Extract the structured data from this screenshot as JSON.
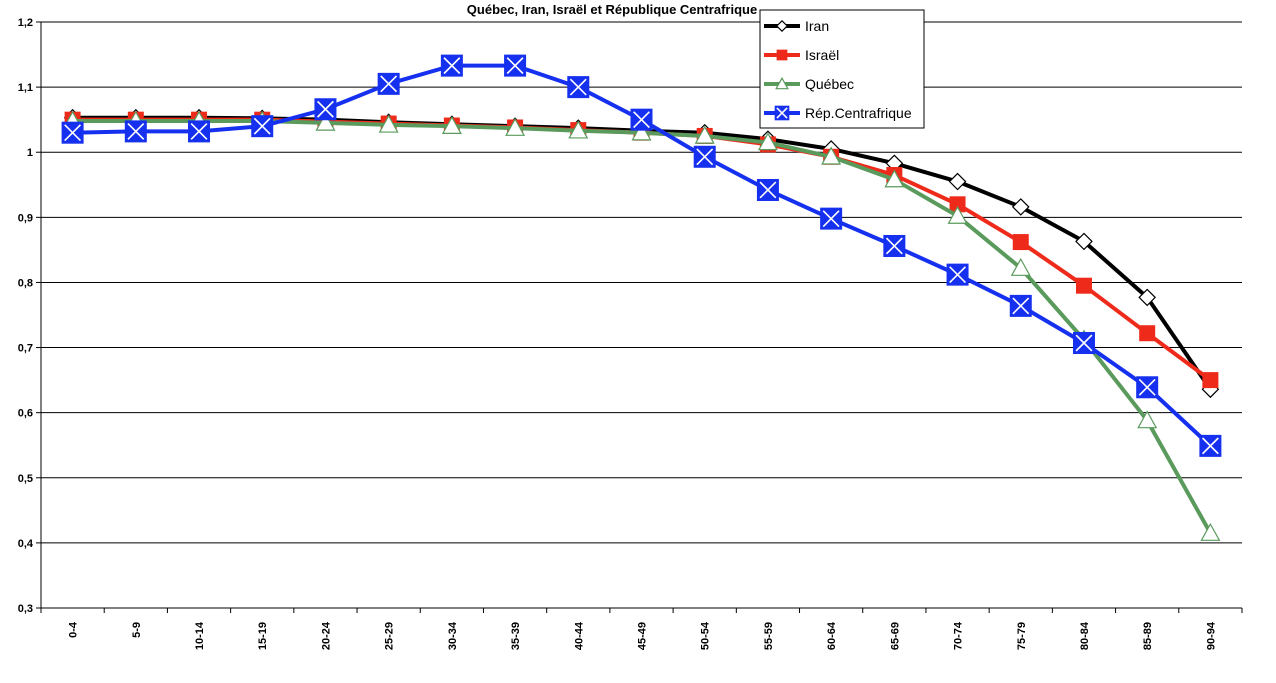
{
  "chart_data": {
    "type": "line",
    "title": "Québec, Iran, Israël et République Centrafrique",
    "xlabel": "",
    "ylabel": "",
    "ylim": [
      0.3,
      1.2
    ],
    "ytick_step": 0.1,
    "ytick_labels": [
      "0,3",
      "0,4",
      "0,5",
      "0,6",
      "0,7",
      "0,8",
      "0,9",
      "1",
      "1,1",
      "1,2"
    ],
    "grid": true,
    "legend_position": "top-right",
    "categories": [
      "0-4",
      "5-9",
      "10-14",
      "15-19",
      "20-24",
      "25-29",
      "30-34",
      "35-39",
      "40-44",
      "45-49",
      "50-54",
      "55-59",
      "60-64",
      "65-69",
      "70-74",
      "75-79",
      "80-84",
      "85-89",
      "90-94"
    ],
    "series": [
      {
        "name": "Iran",
        "color": "#000000",
        "marker": "diamond",
        "values": [
          1.053,
          1.053,
          1.053,
          1.052,
          1.05,
          1.046,
          1.043,
          1.04,
          1.037,
          1.033,
          1.03,
          1.02,
          1.005,
          0.983,
          0.955,
          0.916,
          0.863,
          0.777,
          0.636
        ]
      },
      {
        "name": "Israël",
        "color": "#ee2b1b",
        "marker": "square",
        "values": [
          1.05,
          1.05,
          1.05,
          1.05,
          1.047,
          1.044,
          1.041,
          1.038,
          1.034,
          1.03,
          1.025,
          1.012,
          0.993,
          0.965,
          0.92,
          0.862,
          0.795,
          0.722,
          0.65
        ]
      },
      {
        "name": "Québec",
        "color": "#5a9a5c",
        "marker": "triangle",
        "values": [
          1.048,
          1.048,
          1.048,
          1.048,
          1.045,
          1.042,
          1.04,
          1.037,
          1.033,
          1.03,
          1.025,
          1.015,
          0.993,
          0.958,
          0.902,
          0.822,
          0.712,
          0.588,
          0.415
        ]
      },
      {
        "name": "Rép.Centrafrique",
        "color": "#1630f0",
        "marker": "x-square",
        "values": [
          1.03,
          1.032,
          1.032,
          1.04,
          1.066,
          1.105,
          1.133,
          1.133,
          1.1,
          1.05,
          0.993,
          0.942,
          0.898,
          0.856,
          0.812,
          0.764,
          0.707,
          0.639,
          0.549
        ]
      }
    ]
  }
}
